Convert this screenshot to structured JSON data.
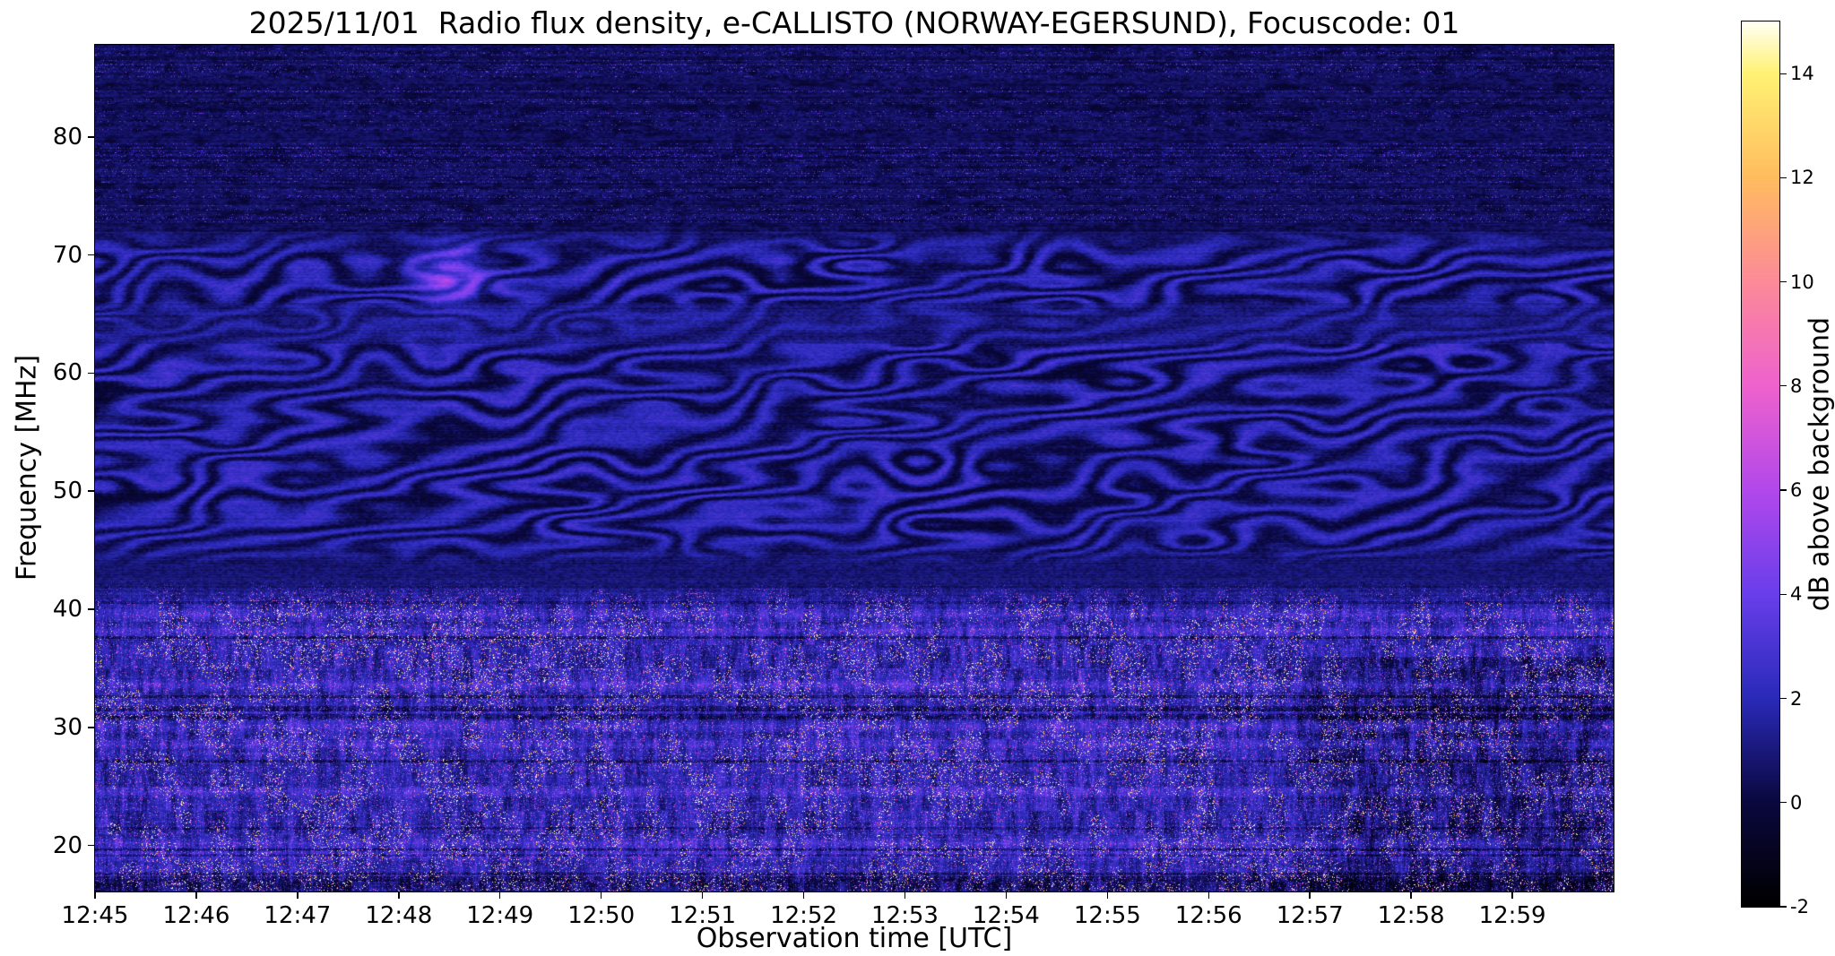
{
  "chart_data": {
    "type": "heatmap",
    "title": "2025/11/01  Radio flux density, e-CALLISTO (NORWAY-EGERSUND), Focuscode: 01",
    "date": "2025/11/01",
    "station": "NORWAY-EGERSUND",
    "focuscode": "01",
    "xlabel": "Observation time [UTC]",
    "ylabel": "Frequency [MHz]",
    "x_ticks": [
      "12:45",
      "12:46",
      "12:47",
      "12:48",
      "12:49",
      "12:50",
      "12:51",
      "12:52",
      "12:53",
      "12:54",
      "12:55",
      "12:56",
      "12:57",
      "12:58",
      "12:59"
    ],
    "x_range_minutes": [
      0,
      15
    ],
    "y_ticks": [
      20,
      30,
      40,
      50,
      60,
      70,
      80
    ],
    "y_range_mhz": [
      16.1,
      87.8
    ],
    "grid": false,
    "colorbar": {
      "label": "dB above background",
      "ticks": [
        -2,
        0,
        2,
        4,
        6,
        8,
        10,
        12,
        14
      ],
      "range": [
        -2,
        15
      ],
      "colormap_stops": [
        {
          "v": -2,
          "c": [
            0,
            0,
            0
          ]
        },
        {
          "v": 0,
          "c": [
            10,
            8,
            62
          ]
        },
        {
          "v": 2,
          "c": [
            42,
            42,
            185
          ]
        },
        {
          "v": 4,
          "c": [
            105,
            62,
            235
          ]
        },
        {
          "v": 6,
          "c": [
            178,
            72,
            235
          ]
        },
        {
          "v": 8,
          "c": [
            238,
            98,
            205
          ]
        },
        {
          "v": 10,
          "c": [
            252,
            138,
            152
          ]
        },
        {
          "v": 12,
          "c": [
            255,
            188,
            95
          ]
        },
        {
          "v": 14,
          "c": [
            255,
            242,
            115
          ]
        },
        {
          "v": 15,
          "c": [
            255,
            255,
            245
          ]
        }
      ]
    },
    "features": [
      {
        "name": "ionospheric-ripple",
        "freq_mhz": [
          44,
          72
        ],
        "time_utc": [
          "12:45",
          "13:00"
        ],
        "level_db": [
          -0.5,
          3
        ],
        "description": "Wavy blue interference ripple pattern across the mid band"
      },
      {
        "name": "bright-patch",
        "freq_mhz": [
          65,
          71
        ],
        "time_utc": [
          "12:48",
          "12:49"
        ],
        "level_db": 5,
        "description": "Localized enhanced emission blob around 12:48.5"
      },
      {
        "name": "broadband-rfi",
        "freq_mhz": [
          16,
          42
        ],
        "time_utc": [
          "12:45",
          "13:00"
        ],
        "level_db": [
          0,
          8
        ],
        "description": "Dense RFI with vertical bursts and bright magenta speckles"
      },
      {
        "name": "quiet-upper-band",
        "freq_mhz": [
          72,
          88
        ],
        "time_utc": [
          "12:45",
          "13:00"
        ],
        "level_db": [
          -1,
          1
        ],
        "description": "Mostly dark background with sparse speckle rows"
      },
      {
        "name": "dark-region",
        "freq_mhz": [
          17,
          35
        ],
        "time_utc": [
          "12:57",
          "13:00"
        ],
        "level_db": [
          -2,
          0
        ],
        "description": "Darker low-frequency region near end of interval"
      }
    ]
  }
}
